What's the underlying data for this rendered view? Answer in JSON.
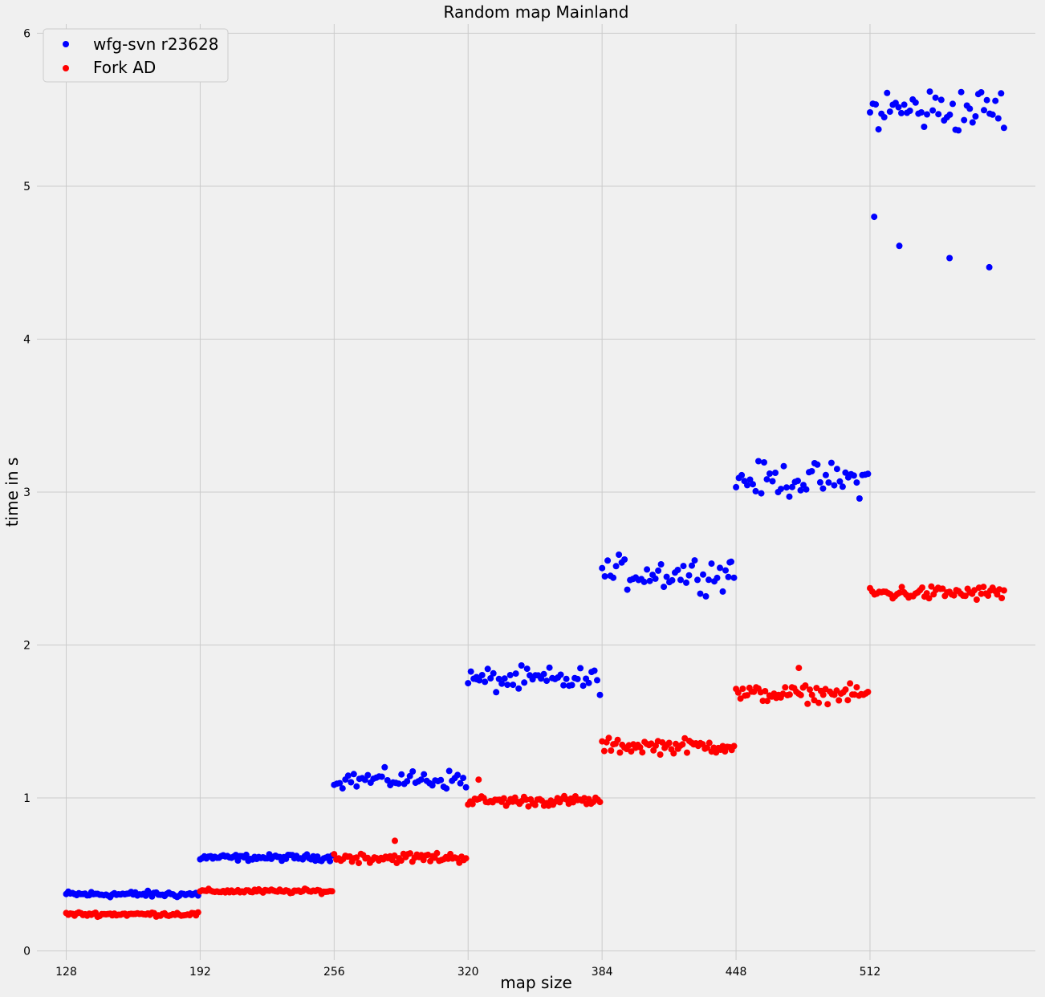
{
  "chart_data": {
    "type": "scatter",
    "title": "Random map Mainland",
    "xlabel": "map size",
    "ylabel": "time in s",
    "xlim": [
      114,
      591
    ],
    "ylim": [
      -0.06,
      6.06
    ],
    "xticks": [
      128,
      192,
      256,
      320,
      384,
      448,
      512
    ],
    "xtick_labels": [
      "128",
      "192",
      "256",
      "320",
      "384",
      "448",
      "512"
    ],
    "yticks": [
      0,
      1,
      2,
      3,
      4,
      5,
      6
    ],
    "ytick_labels": [
      "0",
      "1",
      "2",
      "3",
      "4",
      "5",
      "6"
    ],
    "grid": true,
    "legend_position": "top-left",
    "background": "#f0f0f0",
    "series": [
      {
        "name": "wfg-svn r23628",
        "color": "#0000ff",
        "groups": [
          {
            "x_start": 128,
            "x_end": 191,
            "base": 0.37,
            "spread": 0.03,
            "count": 64
          },
          {
            "x_start": 192,
            "x_end": 255,
            "base": 0.61,
            "spread": 0.03,
            "count": 64
          },
          {
            "x_start": 256,
            "x_end": 319,
            "base": 1.12,
            "spread": 0.09,
            "count": 48
          },
          {
            "x_start": 320,
            "x_end": 383,
            "base": 1.77,
            "spread": 0.12,
            "count": 48
          },
          {
            "x_start": 384,
            "x_end": 447,
            "base": 2.47,
            "spread": 0.16,
            "count": 48
          },
          {
            "x_start": 448,
            "x_end": 511,
            "base": 3.08,
            "spread": 0.16,
            "count": 48
          },
          {
            "x_start": 512,
            "x_end": 576,
            "base": 5.5,
            "spread": 0.22,
            "count": 48
          }
        ],
        "points": [
          {
            "x": 514,
            "y": 4.8
          },
          {
            "x": 526,
            "y": 4.61
          },
          {
            "x": 550,
            "y": 4.53
          },
          {
            "x": 569,
            "y": 4.47
          },
          {
            "x": 324,
            "y": 1.79
          },
          {
            "x": 445,
            "y": 2.54
          }
        ]
      },
      {
        "name": "Fork AD",
        "color": "#ff0000",
        "groups": [
          {
            "x_start": 128,
            "x_end": 191,
            "base": 0.24,
            "spread": 0.02,
            "count": 64
          },
          {
            "x_start": 192,
            "x_end": 255,
            "base": 0.39,
            "spread": 0.02,
            "count": 64
          },
          {
            "x_start": 256,
            "x_end": 319,
            "base": 0.61,
            "spread": 0.05,
            "count": 60
          },
          {
            "x_start": 320,
            "x_end": 383,
            "base": 0.98,
            "spread": 0.05,
            "count": 60
          },
          {
            "x_start": 384,
            "x_end": 447,
            "base": 1.34,
            "spread": 0.07,
            "count": 60
          },
          {
            "x_start": 448,
            "x_end": 511,
            "base": 1.68,
            "spread": 0.08,
            "count": 60
          },
          {
            "x_start": 512,
            "x_end": 576,
            "base": 2.34,
            "spread": 0.07,
            "count": 60
          }
        ],
        "points": [
          {
            "x": 325,
            "y": 1.12
          },
          {
            "x": 285,
            "y": 0.72
          },
          {
            "x": 478,
            "y": 1.85
          }
        ]
      }
    ]
  }
}
